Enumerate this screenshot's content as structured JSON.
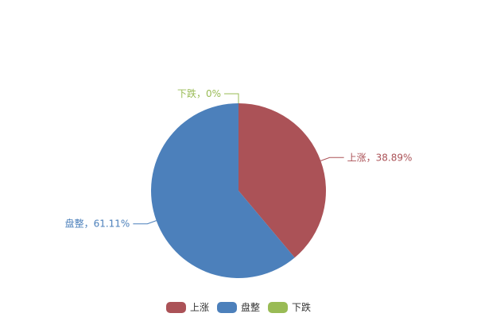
{
  "chart_data": {
    "type": "pie",
    "categories": [
      "上涨",
      "盘整",
      "下跌"
    ],
    "values": [
      38.89,
      61.11,
      0
    ],
    "labels": [
      "上涨，38.89%",
      "盘整，61.11%",
      "下跌，0%"
    ],
    "colors": [
      "#ab5257",
      "#4c80bb",
      "#99bb55"
    ],
    "legend": {
      "position": "bottom",
      "items": [
        "上涨",
        "盘整",
        "下跌"
      ]
    },
    "start_angle_deg": 90,
    "direction": "clockwise"
  }
}
